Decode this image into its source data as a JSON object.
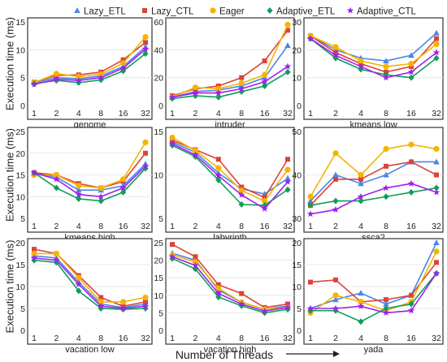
{
  "legend": [
    {
      "name": "Lazy_ETL",
      "color": "#4a86e8",
      "marker": "triangle"
    },
    {
      "name": "Lazy_CTL",
      "color": "#db4437",
      "marker": "square"
    },
    {
      "name": "Eager",
      "color": "#f4b400",
      "marker": "circle"
    },
    {
      "name": "Adaptive_ETL",
      "color": "#0f9d58",
      "marker": "diamond"
    },
    {
      "name": "Adaptive_CTL",
      "color": "#a020f0",
      "marker": "star"
    }
  ],
  "ylabel": "Execution time (ms)",
  "xlabel": "Number of Threads",
  "chart_data": [
    {
      "type": "line",
      "title": "genome",
      "categories": [
        "1",
        "2",
        "4",
        "8",
        "16",
        "32"
      ],
      "ylim": [
        0,
        15
      ],
      "yticks": [
        0,
        5,
        10,
        15
      ],
      "series": [
        {
          "name": "Lazy_ETL",
          "values": [
            4.1,
            5.0,
            4.8,
            5.3,
            7.0,
            10.5
          ]
        },
        {
          "name": "Lazy_CTL",
          "values": [
            4.2,
            5.4,
            5.5,
            6.0,
            8.2,
            11.3
          ]
        },
        {
          "name": "Eager",
          "values": [
            4.1,
            5.7,
            5.2,
            5.6,
            7.6,
            12.3
          ]
        },
        {
          "name": "Adaptive_ETL",
          "values": [
            3.9,
            4.5,
            4.1,
            4.6,
            6.2,
            9.3
          ]
        },
        {
          "name": "Adaptive_CTL",
          "values": [
            3.8,
            4.7,
            4.5,
            5.0,
            6.7,
            10.1
          ]
        }
      ]
    },
    {
      "type": "line",
      "title": "intruder",
      "categories": [
        "1",
        "2",
        "4",
        "8",
        "16",
        "32"
      ],
      "ylim": [
        0,
        60
      ],
      "yticks": [
        0,
        20,
        40,
        60
      ],
      "series": [
        {
          "name": "Lazy_ETL",
          "values": [
            6,
            10,
            11,
            14,
            20,
            43
          ]
        },
        {
          "name": "Lazy_CTL",
          "values": [
            7,
            12,
            14,
            20,
            32,
            54
          ]
        },
        {
          "name": "Eager",
          "values": [
            6,
            13,
            12,
            16,
            22,
            58
          ]
        },
        {
          "name": "Adaptive_ETL",
          "values": [
            5,
            7,
            6,
            10,
            14,
            24
          ]
        },
        {
          "name": "Adaptive_CTL",
          "values": [
            6,
            9,
            9,
            12,
            17,
            28
          ]
        }
      ]
    },
    {
      "type": "line",
      "title": "kmeans low",
      "categories": [
        "1",
        "2",
        "4",
        "8",
        "16",
        "32"
      ],
      "ylim": [
        0,
        30
      ],
      "yticks": [
        0,
        10,
        20,
        30
      ],
      "series": [
        {
          "name": "Lazy_ETL",
          "values": [
            25,
            20,
            17,
            16,
            18,
            26
          ]
        },
        {
          "name": "Lazy_CTL",
          "values": [
            25,
            19,
            15,
            12,
            14,
            24
          ]
        },
        {
          "name": "Eager",
          "values": [
            25,
            21,
            16,
            14,
            15,
            22
          ]
        },
        {
          "name": "Adaptive_ETL",
          "values": [
            24,
            17,
            13,
            11,
            10,
            17
          ]
        },
        {
          "name": "Adaptive_CTL",
          "values": [
            24,
            18,
            14,
            10,
            12,
            19
          ]
        }
      ]
    },
    {
      "type": "line",
      "title": "kmeans high",
      "categories": [
        "1",
        "2",
        "4",
        "8",
        "16",
        "32"
      ],
      "ylim": [
        5,
        25
      ],
      "yticks": [
        5,
        10,
        15,
        20,
        25
      ],
      "series": [
        {
          "name": "Lazy_ETL",
          "values": [
            15.5,
            14.5,
            11.5,
            11.5,
            12.5,
            17.5
          ]
        },
        {
          "name": "Lazy_CTL",
          "values": [
            15.5,
            15.0,
            13.0,
            12.0,
            13.5,
            20.0
          ]
        },
        {
          "name": "Eager",
          "values": [
            15.0,
            15.0,
            12.5,
            12.0,
            14.0,
            22.5
          ]
        },
        {
          "name": "Adaptive_ETL",
          "values": [
            15.5,
            12.0,
            9.5,
            9.0,
            11.0,
            16.5
          ]
        },
        {
          "name": "Adaptive_CTL",
          "values": [
            15.5,
            14.0,
            10.5,
            10.0,
            12.0,
            17.0
          ]
        }
      ]
    },
    {
      "type": "line",
      "title": "labyrinth",
      "categories": [
        "1",
        "2",
        "4",
        "8",
        "16",
        "32"
      ],
      "ylim": [
        5,
        15
      ],
      "yticks": [
        5,
        10,
        15
      ],
      "series": [
        {
          "name": "Lazy_ETL",
          "values": [
            13.8,
            12.6,
            10.2,
            8.4,
            7.8,
            9.6
          ]
        },
        {
          "name": "Lazy_CTL",
          "values": [
            14.0,
            12.9,
            11.8,
            8.6,
            7.4,
            11.8
          ]
        },
        {
          "name": "Eager",
          "values": [
            14.3,
            12.8,
            10.8,
            8.2,
            7.0,
            10.6
          ]
        },
        {
          "name": "Adaptive_ETL",
          "values": [
            13.4,
            12.1,
            9.4,
            6.6,
            6.5,
            8.3
          ]
        },
        {
          "name": "Adaptive_CTL",
          "values": [
            13.6,
            12.3,
            9.9,
            7.7,
            6.1,
            9.2
          ]
        }
      ]
    },
    {
      "type": "line",
      "title": "ssca2",
      "categories": [
        "1",
        "2",
        "4",
        "8",
        "16",
        "32"
      ],
      "ylim": [
        30,
        50
      ],
      "yticks": [
        30,
        40,
        50
      ],
      "series": [
        {
          "name": "Lazy_ETL",
          "values": [
            34,
            40,
            38,
            40,
            43,
            43
          ]
        },
        {
          "name": "Lazy_CTL",
          "values": [
            33,
            39,
            39,
            42,
            43,
            40
          ]
        },
        {
          "name": "Eager",
          "values": [
            35,
            45,
            40,
            46,
            47,
            46
          ]
        },
        {
          "name": "Adaptive_ETL",
          "values": [
            33,
            34,
            34,
            35,
            36,
            37
          ]
        },
        {
          "name": "Adaptive_CTL",
          "values": [
            31,
            32,
            35,
            37,
            38,
            36
          ]
        }
      ]
    },
    {
      "type": "line",
      "title": "vacation low",
      "categories": [
        "1",
        "2",
        "4",
        "8",
        "16",
        "32"
      ],
      "ylim": [
        0,
        20
      ],
      "yticks": [
        0,
        5,
        10,
        15,
        20
      ],
      "series": [
        {
          "name": "Lazy_ETL",
          "values": [
            17.0,
            16.5,
            11.0,
            6.0,
            5.2,
            6.0
          ]
        },
        {
          "name": "Lazy_CTL",
          "values": [
            18.5,
            17.5,
            12.5,
            7.5,
            5.5,
            6.5
          ]
        },
        {
          "name": "Eager",
          "values": [
            17.5,
            17.5,
            12.0,
            6.5,
            6.5,
            7.5
          ]
        },
        {
          "name": "Adaptive_ETL",
          "values": [
            16.0,
            15.5,
            9.0,
            5.0,
            4.8,
            5.0
          ]
        },
        {
          "name": "Adaptive_CTL",
          "values": [
            16.5,
            16.0,
            10.5,
            5.5,
            5.0,
            5.5
          ]
        }
      ]
    },
    {
      "type": "line",
      "title": "vacation high",
      "categories": [
        "1",
        "2",
        "4",
        "8",
        "16",
        "32"
      ],
      "ylim": [
        0,
        25
      ],
      "yticks": [
        0,
        5,
        10,
        15,
        20,
        25
      ],
      "series": [
        {
          "name": "Lazy_ETL",
          "values": [
            22.0,
            20.0,
            11.5,
            8.0,
            6.0,
            7.0
          ]
        },
        {
          "name": "Lazy_CTL",
          "values": [
            24.5,
            21.0,
            13.0,
            10.5,
            6.5,
            7.5
          ]
        },
        {
          "name": "Eager",
          "values": [
            21.5,
            19.5,
            12.0,
            8.0,
            6.0,
            6.5
          ]
        },
        {
          "name": "Adaptive_ETL",
          "values": [
            20.5,
            17.5,
            9.5,
            7.0,
            5.0,
            6.0
          ]
        },
        {
          "name": "Adaptive_CTL",
          "values": [
            21.0,
            18.5,
            10.5,
            7.5,
            5.5,
            6.5
          ]
        }
      ]
    },
    {
      "type": "line",
      "title": "yada",
      "categories": [
        "1",
        "2",
        "4",
        "8",
        "16",
        "32"
      ],
      "ylim": [
        0,
        20
      ],
      "yticks": [
        0,
        5,
        10,
        15,
        20
      ],
      "series": [
        {
          "name": "Lazy_ETL",
          "values": [
            5.0,
            7.0,
            8.5,
            6.0,
            8.0,
            20.0
          ]
        },
        {
          "name": "Lazy_CTL",
          "values": [
            11.0,
            11.5,
            6.5,
            7.0,
            8.0,
            15.5
          ]
        },
        {
          "name": "Eager",
          "values": [
            4.0,
            8.0,
            6.5,
            4.5,
            6.5,
            18.0
          ]
        },
        {
          "name": "Adaptive_ETL",
          "values": [
            4.5,
            4.5,
            2.0,
            5.0,
            6.0,
            13.0
          ]
        },
        {
          "name": "Adaptive_CTL",
          "values": [
            5.0,
            5.0,
            5.5,
            4.0,
            4.5,
            13.0
          ]
        }
      ]
    }
  ]
}
